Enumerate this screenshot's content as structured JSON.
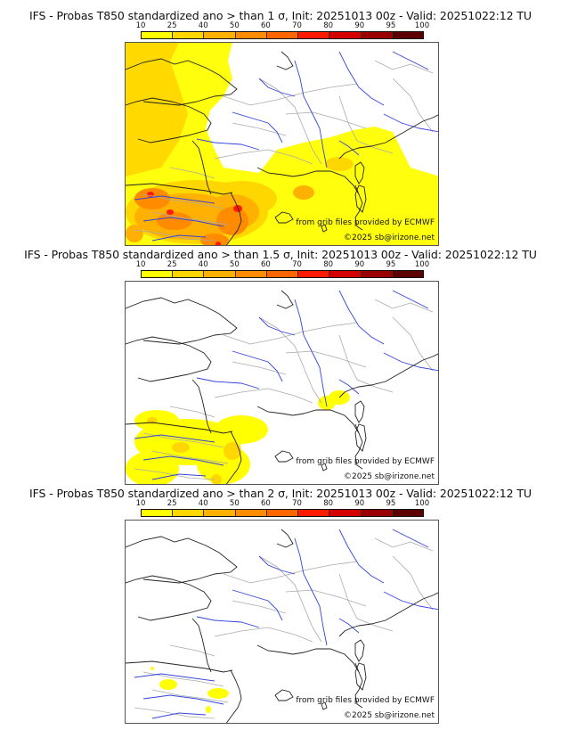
{
  "panels": [
    {
      "title": "IFS - Probas T850  standardized ano > than 1 σ, Init: 20251013 00z - Valid: 20251022:12 TU",
      "threshold": "1 σ",
      "coverage": "wide"
    },
    {
      "title": "IFS - Probas T850  standardized ano > than 1.5 σ, Init: 20251013 00z - Valid: 20251022:12 TU",
      "threshold": "1.5 σ",
      "coverage": "medium"
    },
    {
      "title": "IFS - Probas T850  standardized ano > than 2 σ, Init: 20251013 00z - Valid: 20251022:12 TU",
      "threshold": "2 σ",
      "coverage": "small"
    }
  ],
  "colorbar": {
    "ticks": [
      "10",
      "25",
      "40",
      "50",
      "60",
      "70",
      "80",
      "90",
      "95",
      "100"
    ],
    "colors": [
      "#ffff00",
      "#ffd700",
      "#ffb000",
      "#ff8c00",
      "#ff6600",
      "#ff1a00",
      "#d40000",
      "#990000",
      "#5c0000"
    ]
  },
  "credits": {
    "source": "from grib files provided by ECMWF",
    "copyright": "©2025 sb@irizone.net"
  },
  "map_colors": {
    "coast": "#222222",
    "borders": "#aaaaaa",
    "rivers": "#3344dd"
  }
}
